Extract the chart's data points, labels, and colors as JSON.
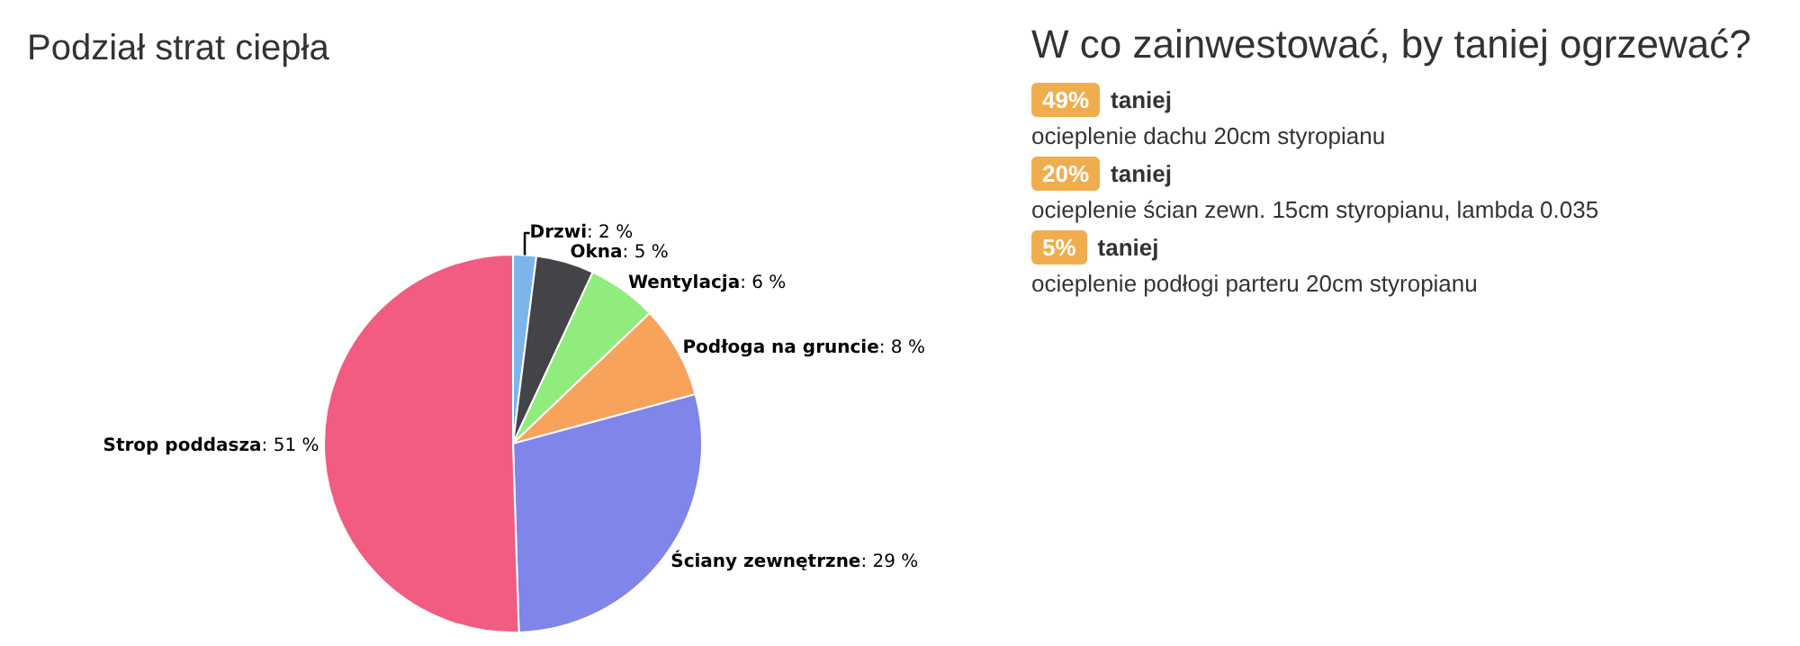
{
  "chart_data": [
    {
      "type": "pie",
      "title": "Podział strat ciepła",
      "categories": [
        "Drzwi",
        "Okna",
        "Wentylacja",
        "Podłoga na gruncie",
        "Ściany zewnętrzne",
        "Strop poddasza"
      ],
      "values": [
        2,
        5,
        6,
        8,
        29,
        51
      ],
      "value_labels": [
        ": 2 %",
        ": 5 %",
        ": 6 %",
        ": 8 %",
        ": 29 %",
        ": 51 %"
      ],
      "colors": [
        "#7cb5ec",
        "#434348",
        "#90ed7d",
        "#f7a35c",
        "#8085e9",
        "#f15c80"
      ]
    },
    {
      "type": "other",
      "title": "W co zainwestować, by taniej ogrzewać?",
      "annotations": [
        "49%",
        "taniej",
        "ocieplenie dachu 20cm styropianu",
        "20%",
        "taniej",
        "ocieplenie ścian zewn. 15cm styropianu, lambda 0.035",
        "5%",
        "taniej",
        "ocieplenie podłogi parteru 20cm styropianu"
      ]
    }
  ]
}
